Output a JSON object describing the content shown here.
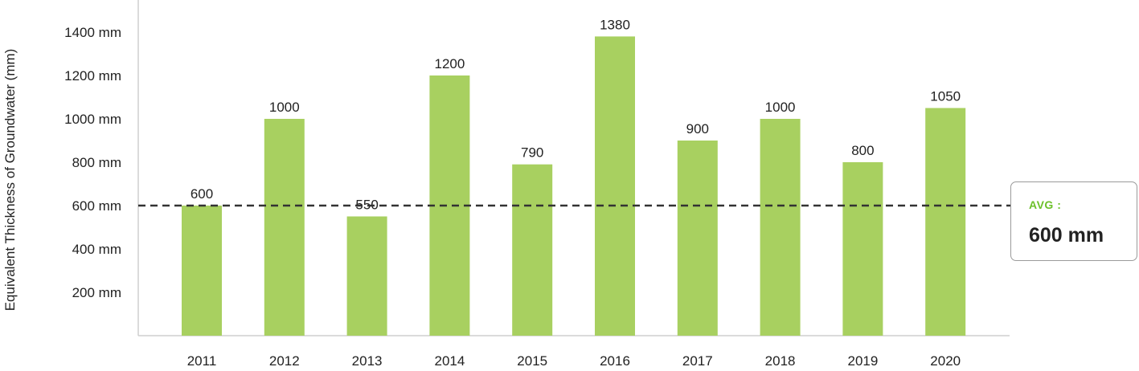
{
  "chart_data": {
    "type": "bar",
    "categories": [
      "2011",
      "2012",
      "2013",
      "2014",
      "2015",
      "2016",
      "2017",
      "2018",
      "2019",
      "2020"
    ],
    "values": [
      600,
      1000,
      550,
      1200,
      790,
      1380,
      900,
      1000,
      800,
      1050
    ],
    "data_labels": [
      "600",
      "1000",
      "550",
      "1200",
      "790",
      "1380",
      "900",
      "1000",
      "800",
      "1050"
    ],
    "title": "",
    "xlabel": "",
    "ylabel": "Equivalent Thickness of Groundwater (mm)",
    "y_ticks": [
      200,
      400,
      600,
      800,
      1000,
      1200,
      1400
    ],
    "y_tick_labels": [
      "200 mm",
      "400 mm",
      "600 mm",
      "800 mm",
      "1000 mm",
      "1200 mm",
      "1400 mm"
    ],
    "ylim": [
      0,
      1500
    ],
    "grid": false,
    "bar_color": "#a8d060",
    "average": {
      "value": 600,
      "label": "AVG :",
      "value_text": "600 mm",
      "line_style": "dashed",
      "line_color": "#333333",
      "label_color": "#6cc02a"
    }
  }
}
